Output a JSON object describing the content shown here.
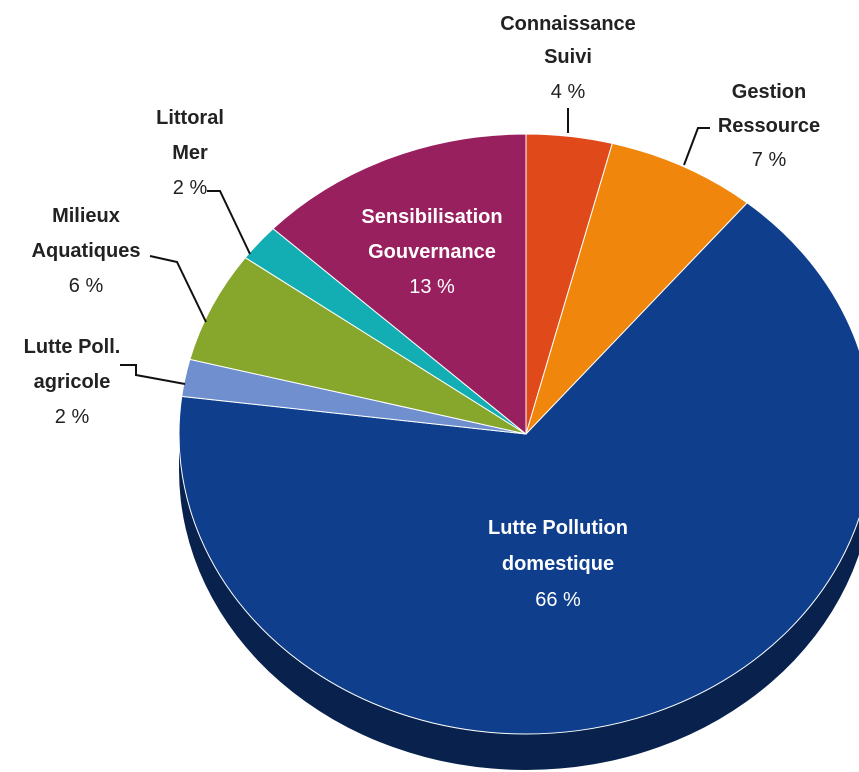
{
  "chart_data": {
    "type": "pie",
    "title": "",
    "slices": [
      {
        "line1": "Connaissance",
        "line2": "Suivi",
        "pct_label": "4 %",
        "value": 4,
        "color": "#e04a1b"
      },
      {
        "line1": "Gestion",
        "line2": "Ressource",
        "pct_label": "7 %",
        "value": 7,
        "color": "#f0860c"
      },
      {
        "line1": "Lutte Pollution",
        "line2": "domestique",
        "pct_label": "66 %",
        "value": 66,
        "color": "#0e3e8c"
      },
      {
        "line1": "Lutte Poll.",
        "line2": "agricole",
        "pct_label": "2 %",
        "value": 2,
        "color": "#6f8fcf"
      },
      {
        "line1": "Milieux",
        "line2": "Aquatiques",
        "pct_label": "6 %",
        "value": 6,
        "color": "#86a62c"
      },
      {
        "line1": "Littoral",
        "line2": "Mer",
        "pct_label": "2 %",
        "value": 2,
        "color": "#12aeb3"
      },
      {
        "line1": "Sensibilisation",
        "line2": "Gouvernance",
        "pct_label": "13 %",
        "value": 13,
        "color": "#98205e"
      }
    ],
    "start": "12 o'clock",
    "direction": "clockwise",
    "legend": "none",
    "label_style": "data labels with leader lines"
  }
}
